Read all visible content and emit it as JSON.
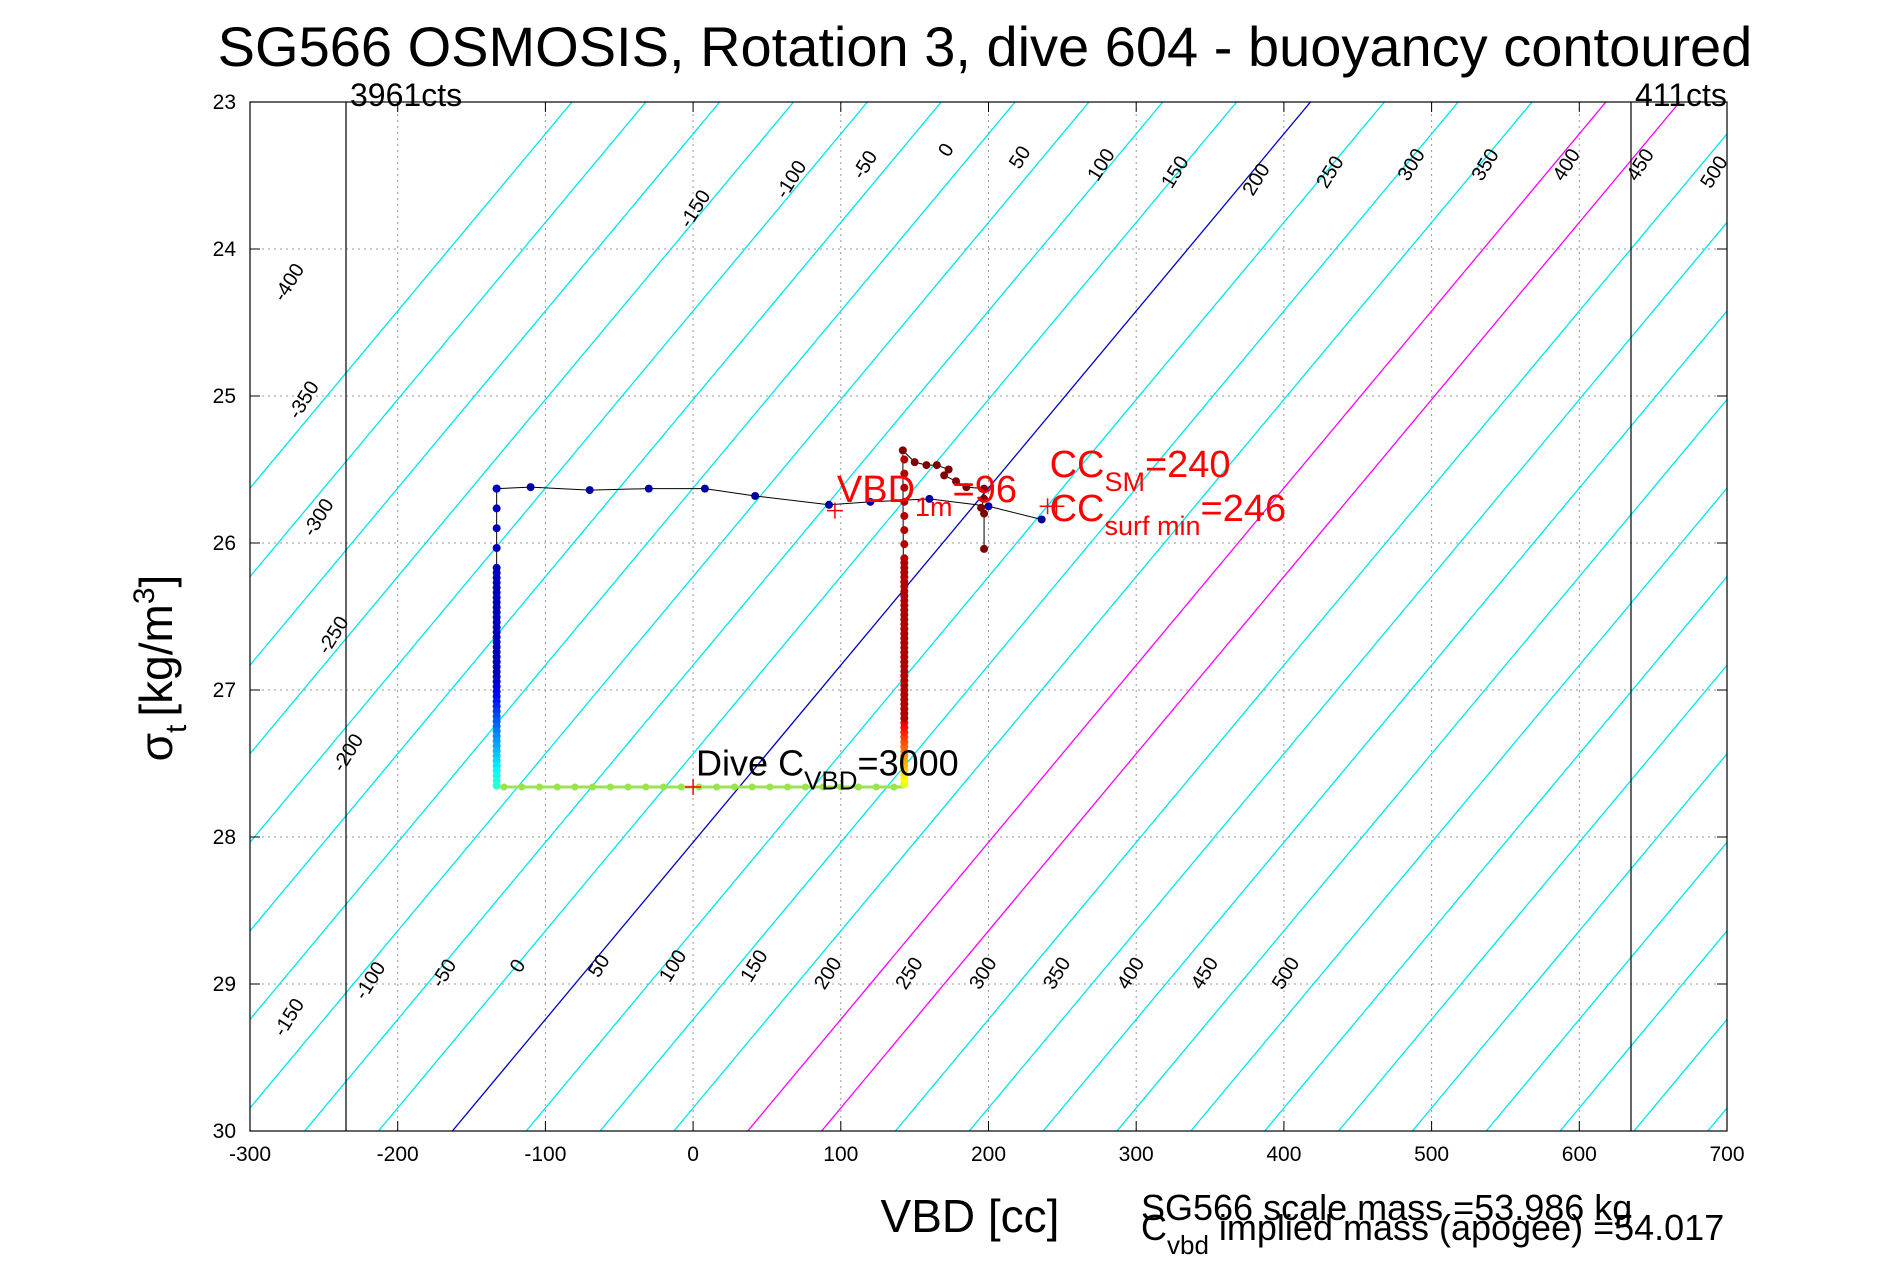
{
  "title": "SG566 OSMOSIS, Rotation 3, dive 604 - buoyancy contoured",
  "colors": {
    "contour": "#00e5ee",
    "zero_contour": "#0000cc",
    "highlight_contour": "#ff00ff",
    "annotation_red": "#ff0000",
    "track_line": "#000000",
    "grid": "#999999"
  },
  "chart_data": {
    "type": "scatter",
    "xlabel": "VBD [cc]",
    "ylabel_main": "σ",
    "ylabel_sub": "t",
    "ylabel_rest": "[kg/m",
    "ylabel_sup": "3",
    "ylabel_close": "]",
    "xlim": [
      -300,
      700
    ],
    "ylim": [
      23,
      30
    ],
    "y_reversed": true,
    "x_ticks": [
      -300,
      -200,
      -100,
      0,
      100,
      200,
      300,
      400,
      500,
      600,
      700
    ],
    "y_ticks": [
      23,
      24,
      25,
      26,
      27,
      28,
      29,
      30
    ],
    "grid": true,
    "contour_levels": [
      -400,
      -350,
      -300,
      -250,
      -200,
      -150,
      -100,
      -50,
      0,
      50,
      100,
      150,
      200,
      250,
      300,
      350,
      400,
      450,
      500
    ],
    "contour_slope_vbd_per_sigma": -83,
    "contour_zero_x_at_sigma_30": -163,
    "contour_highlight_levels": [
      200,
      250
    ],
    "top_labels": [
      {
        "level": -400,
        "x": -270,
        "y": 24.25
      },
      {
        "level": -350,
        "x": -260,
        "y": 25.05
      },
      {
        "level": -300,
        "x": -250,
        "y": 25.85
      },
      {
        "level": -250,
        "x": -240,
        "y": 26.65
      },
      {
        "level": -200,
        "x": -230,
        "y": 27.45
      },
      {
        "level": -150,
        "x": 5,
        "y": 23.75
      },
      {
        "level": -100,
        "x": 70,
        "y": 23.55
      },
      {
        "level": -50,
        "x": 120,
        "y": 23.45
      },
      {
        "level": 0,
        "x": 175,
        "y": 23.35
      },
      {
        "level": 50,
        "x": 225,
        "y": 23.4
      },
      {
        "level": 100,
        "x": 280,
        "y": 23.45
      },
      {
        "level": 150,
        "x": 330,
        "y": 23.5
      },
      {
        "level": 200,
        "x": 385,
        "y": 23.55
      },
      {
        "level": 250,
        "x": 435,
        "y": 23.5
      },
      {
        "level": 300,
        "x": 490,
        "y": 23.45
      },
      {
        "level": 350,
        "x": 540,
        "y": 23.45
      },
      {
        "level": 400,
        "x": 595,
        "y": 23.45
      },
      {
        "level": 450,
        "x": 645,
        "y": 23.45
      },
      {
        "level": 500,
        "x": 695,
        "y": 23.5
      }
    ],
    "bottom_labels": [
      {
        "level": -150,
        "x": -270,
        "y": 29.25
      },
      {
        "level": -100,
        "x": -215,
        "y": 29.0
      },
      {
        "level": -50,
        "x": -165,
        "y": 28.95
      },
      {
        "level": 0,
        "x": -115,
        "y": 28.9
      },
      {
        "level": 50,
        "x": -60,
        "y": 28.9
      },
      {
        "level": 100,
        "x": -10,
        "y": 28.9
      },
      {
        "level": 150,
        "x": 45,
        "y": 28.9
      },
      {
        "level": 200,
        "x": 95,
        "y": 28.95
      },
      {
        "level": 250,
        "x": 150,
        "y": 28.95
      },
      {
        "level": 300,
        "x": 200,
        "y": 28.95
      },
      {
        "level": 350,
        "x": 250,
        "y": 28.95
      },
      {
        "level": 400,
        "x": 300,
        "y": 28.95
      },
      {
        "level": 450,
        "x": 350,
        "y": 28.95
      },
      {
        "level": 500,
        "x": 405,
        "y": 28.95
      }
    ],
    "vertical_limits": [
      {
        "x": -235,
        "label": "3961cts"
      },
      {
        "x": 635,
        "label": "411cts"
      }
    ],
    "dive_track": [
      [
        -133,
        25.63
      ],
      [
        -110,
        25.62
      ],
      [
        -70,
        25.64
      ],
      [
        -30,
        25.63
      ],
      [
        8,
        25.63
      ],
      [
        42,
        25.68
      ],
      [
        92,
        25.74
      ],
      [
        120,
        25.72
      ],
      [
        160,
        25.7
      ],
      [
        200,
        25.75
      ],
      [
        236,
        25.84
      ]
    ],
    "dive_track_descent": [
      [
        -133,
        25.63
      ],
      [
        -133,
        25.96
      ],
      [
        -133,
        26.1
      ],
      [
        -133,
        26.25
      ],
      [
        -133,
        26.6
      ],
      [
        -133,
        26.8
      ],
      [
        -133,
        27.0
      ],
      [
        -133,
        27.2
      ],
      [
        -133,
        27.4
      ],
      [
        -133,
        27.6
      ],
      [
        -133,
        27.65
      ]
    ],
    "dive_track_bottom": [
      -133,
      27.66,
      143,
      27.66
    ],
    "dive_track_ascent": [
      [
        143,
        27.64
      ],
      [
        143,
        27.4
      ],
      [
        143,
        27.2
      ],
      [
        143,
        27.0
      ],
      [
        143,
        26.7
      ],
      [
        142,
        26.4
      ],
      [
        142,
        26.1
      ],
      [
        142,
        25.9
      ],
      [
        143,
        25.7
      ],
      [
        142,
        25.4
      ]
    ],
    "surface_points": [
      [
        142,
        25.37
      ],
      [
        150,
        25.45
      ],
      [
        158,
        25.47
      ],
      [
        165,
        25.47
      ],
      [
        173,
        25.5
      ],
      [
        170,
        25.54
      ],
      [
        178,
        25.58
      ],
      [
        185,
        25.62
      ],
      [
        197,
        25.63
      ],
      [
        197,
        25.7
      ],
      [
        195,
        25.76
      ],
      [
        197,
        25.8
      ],
      [
        197,
        26.04
      ]
    ],
    "annotations": {
      "vbd_1m_main": "VBD",
      "vbd_1m_sub": "1m",
      "vbd_1m_value": "=96",
      "cc_sm_main": "CC",
      "cc_sm_sub": "SM",
      "cc_sm_value": "=240",
      "cc_surf_main": "CC",
      "cc_surf_sub": "surf min",
      "cc_surf_value": "=246",
      "dive_cvbd_main": "Dive C",
      "dive_cvbd_sub": "VBD",
      "dive_cvbd_value": "=3000"
    },
    "markers": {
      "vbd_1m": [
        96,
        25.78
      ],
      "cc_sm": [
        240,
        25.75
      ],
      "cc_surf": [
        246,
        25.75
      ],
      "dive_c": [
        0,
        27.66
      ]
    }
  },
  "footer": {
    "scale_mass": "SG566 scale mass =53.986 kg",
    "implied_main": "C",
    "implied_sub": "vbd",
    "implied_rest": " implied mass (apogee) =54.017"
  }
}
